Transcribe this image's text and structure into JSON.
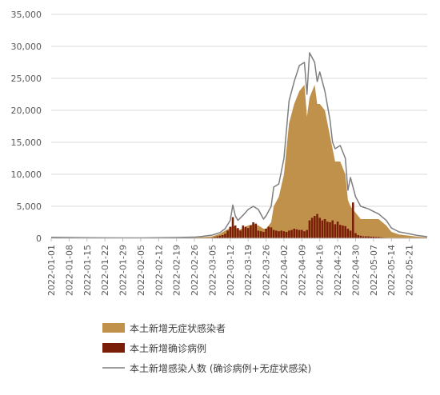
{
  "chart_data": {
    "type": "area",
    "title": "",
    "xlabel": "",
    "ylabel": "",
    "ylim": [
      0,
      35000
    ],
    "yticks": [
      0,
      5000,
      10000,
      15000,
      20000,
      25000,
      30000,
      35000
    ],
    "ytick_labels": [
      "0",
      "5,000",
      "10,000",
      "15,000",
      "20,000",
      "25,000",
      "30,000",
      "35,000"
    ],
    "xlim": [
      "2022-01-01",
      "2022-05-28"
    ],
    "xticks": [
      "2022-01-01",
      "2022-01-08",
      "2022-01-15",
      "2022-01-22",
      "2022-01-29",
      "2022-02-05",
      "2022-02-12",
      "2022-02-19",
      "2022-02-26",
      "2022-03-05",
      "2022-03-12",
      "2022-03-19",
      "2022-03-26",
      "2022-04-02",
      "2022-04-09",
      "2022-04-16",
      "2022-04-23",
      "2022-04-30",
      "2022-05-07",
      "2022-05-14",
      "2022-05-21"
    ],
    "grid": true,
    "legend_position": "bottom",
    "series": [
      {
        "name": "本土新增无症状感染者",
        "kind": "area",
        "color": "#c0914a",
        "x": [
          "2022-01-01",
          "2022-01-08",
          "2022-01-15",
          "2022-01-22",
          "2022-01-29",
          "2022-02-05",
          "2022-02-12",
          "2022-02-19",
          "2022-02-26",
          "2022-03-01",
          "2022-03-05",
          "2022-03-08",
          "2022-03-10",
          "2022-03-12",
          "2022-03-13",
          "2022-03-14",
          "2022-03-15",
          "2022-03-17",
          "2022-03-19",
          "2022-03-21",
          "2022-03-23",
          "2022-03-25",
          "2022-03-26",
          "2022-03-28",
          "2022-03-29",
          "2022-03-31",
          "2022-04-02",
          "2022-04-04",
          "2022-04-06",
          "2022-04-08",
          "2022-04-10",
          "2022-04-11",
          "2022-04-12",
          "2022-04-14",
          "2022-04-15",
          "2022-04-16",
          "2022-04-18",
          "2022-04-20",
          "2022-04-21",
          "2022-04-22",
          "2022-04-24",
          "2022-04-26",
          "2022-04-27",
          "2022-04-28",
          "2022-04-30",
          "2022-05-02",
          "2022-05-05",
          "2022-05-07",
          "2022-05-09",
          "2022-05-12",
          "2022-05-14",
          "2022-05-17",
          "2022-05-21",
          "2022-05-24",
          "2022-05-28"
        ],
        "values": [
          100,
          80,
          60,
          50,
          40,
          50,
          70,
          80,
          120,
          200,
          300,
          700,
          1200,
          1600,
          2000,
          1800,
          1200,
          1600,
          2000,
          2200,
          2000,
          1500,
          1500,
          2500,
          5000,
          6500,
          10000,
          18000,
          21000,
          23000,
          24000,
          19000,
          22000,
          24000,
          21000,
          21000,
          20000,
          16000,
          14000,
          12000,
          12000,
          10000,
          6000,
          5000,
          4000,
          3000,
          3000,
          3000,
          3000,
          2000,
          1000,
          600,
          400,
          250,
          150
        ]
      },
      {
        "name": "本土新增确诊病例",
        "kind": "bar",
        "color": "#7a1e08",
        "x": [
          "2022-03-05",
          "2022-03-06",
          "2022-03-07",
          "2022-03-08",
          "2022-03-09",
          "2022-03-10",
          "2022-03-11",
          "2022-03-12",
          "2022-03-13",
          "2022-03-14",
          "2022-03-15",
          "2022-03-16",
          "2022-03-17",
          "2022-03-18",
          "2022-03-19",
          "2022-03-20",
          "2022-03-21",
          "2022-03-22",
          "2022-03-23",
          "2022-03-24",
          "2022-03-25",
          "2022-03-26",
          "2022-03-27",
          "2022-03-28",
          "2022-03-29",
          "2022-03-30",
          "2022-03-31",
          "2022-04-01",
          "2022-04-02",
          "2022-04-03",
          "2022-04-04",
          "2022-04-05",
          "2022-04-06",
          "2022-04-07",
          "2022-04-08",
          "2022-04-09",
          "2022-04-10",
          "2022-04-11",
          "2022-04-12",
          "2022-04-13",
          "2022-04-14",
          "2022-04-15",
          "2022-04-16",
          "2022-04-17",
          "2022-04-18",
          "2022-04-19",
          "2022-04-20",
          "2022-04-21",
          "2022-04-22",
          "2022-04-23",
          "2022-04-24",
          "2022-04-25",
          "2022-04-26",
          "2022-04-27",
          "2022-04-28",
          "2022-04-29",
          "2022-04-30",
          "2022-05-01",
          "2022-05-02",
          "2022-05-03",
          "2022-05-04",
          "2022-05-05",
          "2022-05-06",
          "2022-05-07",
          "2022-05-08",
          "2022-05-09",
          "2022-05-10",
          "2022-05-11",
          "2022-05-12"
        ],
        "values": [
          100,
          200,
          300,
          400,
          500,
          700,
          1200,
          1800,
          3300,
          2000,
          1600,
          1200,
          2000,
          1800,
          1600,
          2000,
          2500,
          2300,
          1200,
          1100,
          1000,
          1500,
          1800,
          1700,
          1300,
          1200,
          1100,
          1200,
          1100,
          1000,
          1200,
          1300,
          1500,
          1400,
          1300,
          1300,
          1100,
          1300,
          2800,
          3200,
          3500,
          3800,
          3200,
          2800,
          3000,
          2600,
          2500,
          2800,
          2200,
          2600,
          2100,
          2000,
          1900,
          1500,
          1200,
          5600,
          800,
          500,
          400,
          300,
          300,
          300,
          250,
          250,
          200,
          200,
          150,
          100,
          80
        ]
      },
      {
        "name": "本土新增感染人数 (确诊病例+无症状感染)",
        "kind": "line",
        "color": "#7f7f7f",
        "x": [
          "2022-01-01",
          "2022-01-08",
          "2022-01-15",
          "2022-01-22",
          "2022-01-29",
          "2022-02-05",
          "2022-02-12",
          "2022-02-19",
          "2022-02-26",
          "2022-03-01",
          "2022-03-05",
          "2022-03-08",
          "2022-03-10",
          "2022-03-12",
          "2022-03-13",
          "2022-03-14",
          "2022-03-15",
          "2022-03-17",
          "2022-03-19",
          "2022-03-21",
          "2022-03-23",
          "2022-03-25",
          "2022-03-26",
          "2022-03-28",
          "2022-03-29",
          "2022-03-31",
          "2022-04-02",
          "2022-04-04",
          "2022-04-06",
          "2022-04-08",
          "2022-04-10",
          "2022-04-11",
          "2022-04-12",
          "2022-04-14",
          "2022-04-15",
          "2022-04-16",
          "2022-04-18",
          "2022-04-20",
          "2022-04-21",
          "2022-04-22",
          "2022-04-24",
          "2022-04-26",
          "2022-04-27",
          "2022-04-28",
          "2022-04-30",
          "2022-05-02",
          "2022-05-05",
          "2022-05-07",
          "2022-05-09",
          "2022-05-12",
          "2022-05-14",
          "2022-05-17",
          "2022-05-21",
          "2022-05-24",
          "2022-05-28"
        ],
        "values": [
          150,
          120,
          90,
          80,
          60,
          70,
          100,
          120,
          180,
          300,
          500,
          900,
          1500,
          2800,
          5200,
          3500,
          2800,
          3600,
          4500,
          5000,
          4500,
          3000,
          3500,
          5000,
          8000,
          8500,
          12500,
          21500,
          24500,
          27000,
          27500,
          22500,
          29000,
          27500,
          24500,
          26000,
          23000,
          18500,
          15000,
          14000,
          14500,
          12500,
          7500,
          9500,
          6500,
          5000,
          4600,
          4200,
          3800,
          2800,
          1600,
          1000,
          700,
          450,
          250
        ]
      }
    ]
  },
  "legend": {
    "items": [
      {
        "label": "本土新增无症状感染者",
        "color": "#c0914a",
        "symbol": "block"
      },
      {
        "label": "本土新增确诊病例",
        "color": "#7a1e08",
        "symbol": "block"
      },
      {
        "label": "本土新增感染人数 (确诊病例+无症状感染)",
        "color": "#7f7f7f",
        "symbol": "line"
      }
    ]
  }
}
